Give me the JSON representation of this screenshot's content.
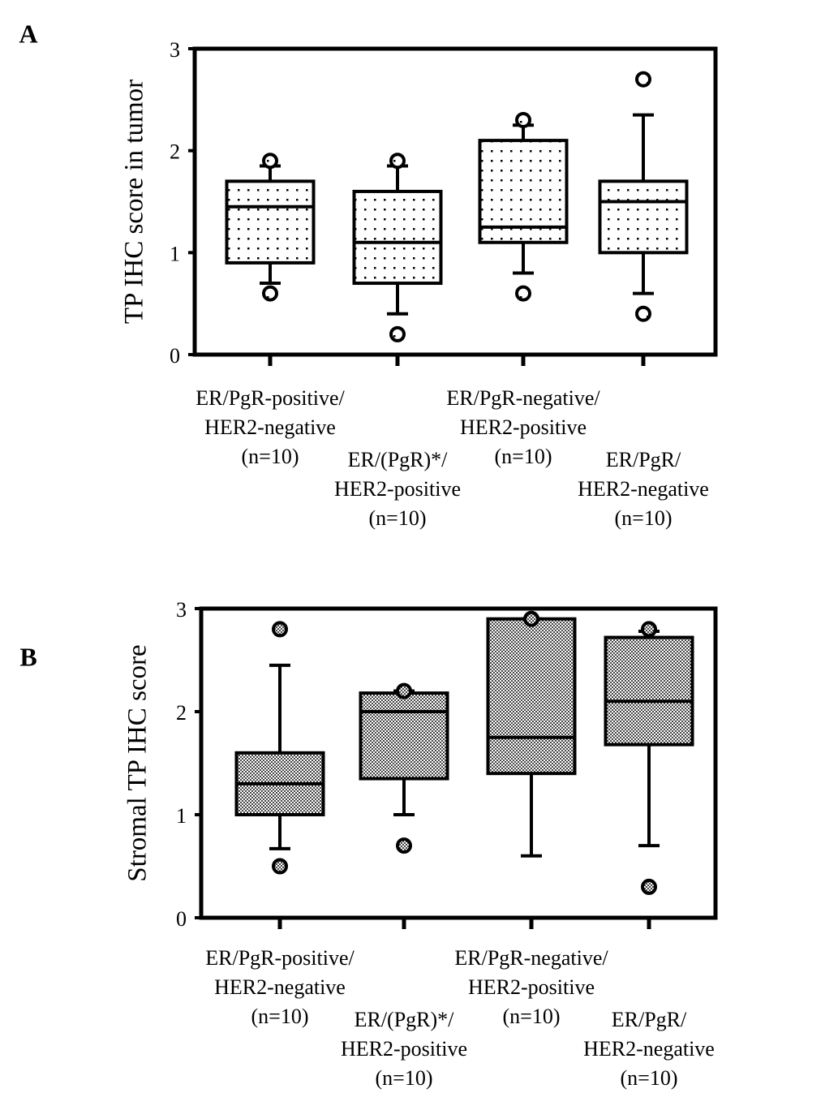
{
  "chart_data": [
    {
      "type": "box",
      "panel": "A",
      "ylabel": "TP IHC score in tumor",
      "pattern": "dots",
      "categories": [
        [
          "ER/PgR-positive/",
          "HER2-negative",
          "(n=10)"
        ],
        [
          "ER/(PgR)*/",
          "HER2-positive",
          "(n=10)"
        ],
        [
          "ER/PgR-negative/",
          "HER2-positive",
          "(n=10)"
        ],
        [
          "ER/PgR/",
          "HER2-negative",
          "(n=10)"
        ]
      ],
      "boxes": [
        {
          "whisker_low": 0.7,
          "q1": 0.9,
          "median": 1.45,
          "q3": 1.7,
          "whisker_high": 1.85,
          "outliers": [
            0.6,
            1.9
          ]
        },
        {
          "whisker_low": 0.4,
          "q1": 0.7,
          "median": 1.1,
          "q3": 1.6,
          "whisker_high": 1.85,
          "outliers": [
            0.2,
            1.9
          ]
        },
        {
          "whisker_low": 0.8,
          "q1": 1.1,
          "median": 1.25,
          "q3": 2.1,
          "whisker_high": 2.25,
          "outliers": [
            0.6,
            2.3
          ]
        },
        {
          "whisker_low": 0.6,
          "q1": 1.0,
          "median": 1.5,
          "q3": 1.7,
          "whisker_high": 2.35,
          "outliers": [
            0.4,
            2.7
          ]
        }
      ],
      "ylim": [
        0,
        3
      ],
      "yticks": [
        0,
        1,
        2,
        3
      ]
    },
    {
      "type": "box",
      "panel": "B",
      "ylabel": "Stromal TP IHC score",
      "pattern": "checker",
      "categories": [
        [
          "ER/PgR-positive/",
          "HER2-negative",
          "(n=10)"
        ],
        [
          "ER/(PgR)*/",
          "HER2-positive",
          "(n=10)"
        ],
        [
          "ER/PgR-negative/",
          "HER2-positive",
          "(n=10)"
        ],
        [
          "ER/PgR/",
          "HER2-negative",
          "(n=10)"
        ]
      ],
      "boxes": [
        {
          "whisker_low": 0.67,
          "q1": 1.0,
          "median": 1.3,
          "q3": 1.6,
          "whisker_high": 2.45,
          "outliers": [
            0.5,
            2.8
          ]
        },
        {
          "whisker_low": 1.0,
          "q1": 1.35,
          "median": 2.0,
          "q3": 2.18,
          "whisker_high": 2.2,
          "outliers": [
            0.7,
            2.2
          ]
        },
        {
          "whisker_low": 0.6,
          "q1": 1.4,
          "median": 1.75,
          "q3": 2.9,
          "whisker_high": 2.9,
          "outliers": [
            2.9
          ]
        },
        {
          "whisker_low": 0.7,
          "q1": 1.68,
          "median": 2.1,
          "q3": 2.72,
          "whisker_high": 2.78,
          "outliers": [
            0.3,
            2.8
          ]
        }
      ],
      "ylim": [
        0,
        3
      ],
      "yticks": [
        0,
        1,
        2,
        3
      ]
    }
  ]
}
